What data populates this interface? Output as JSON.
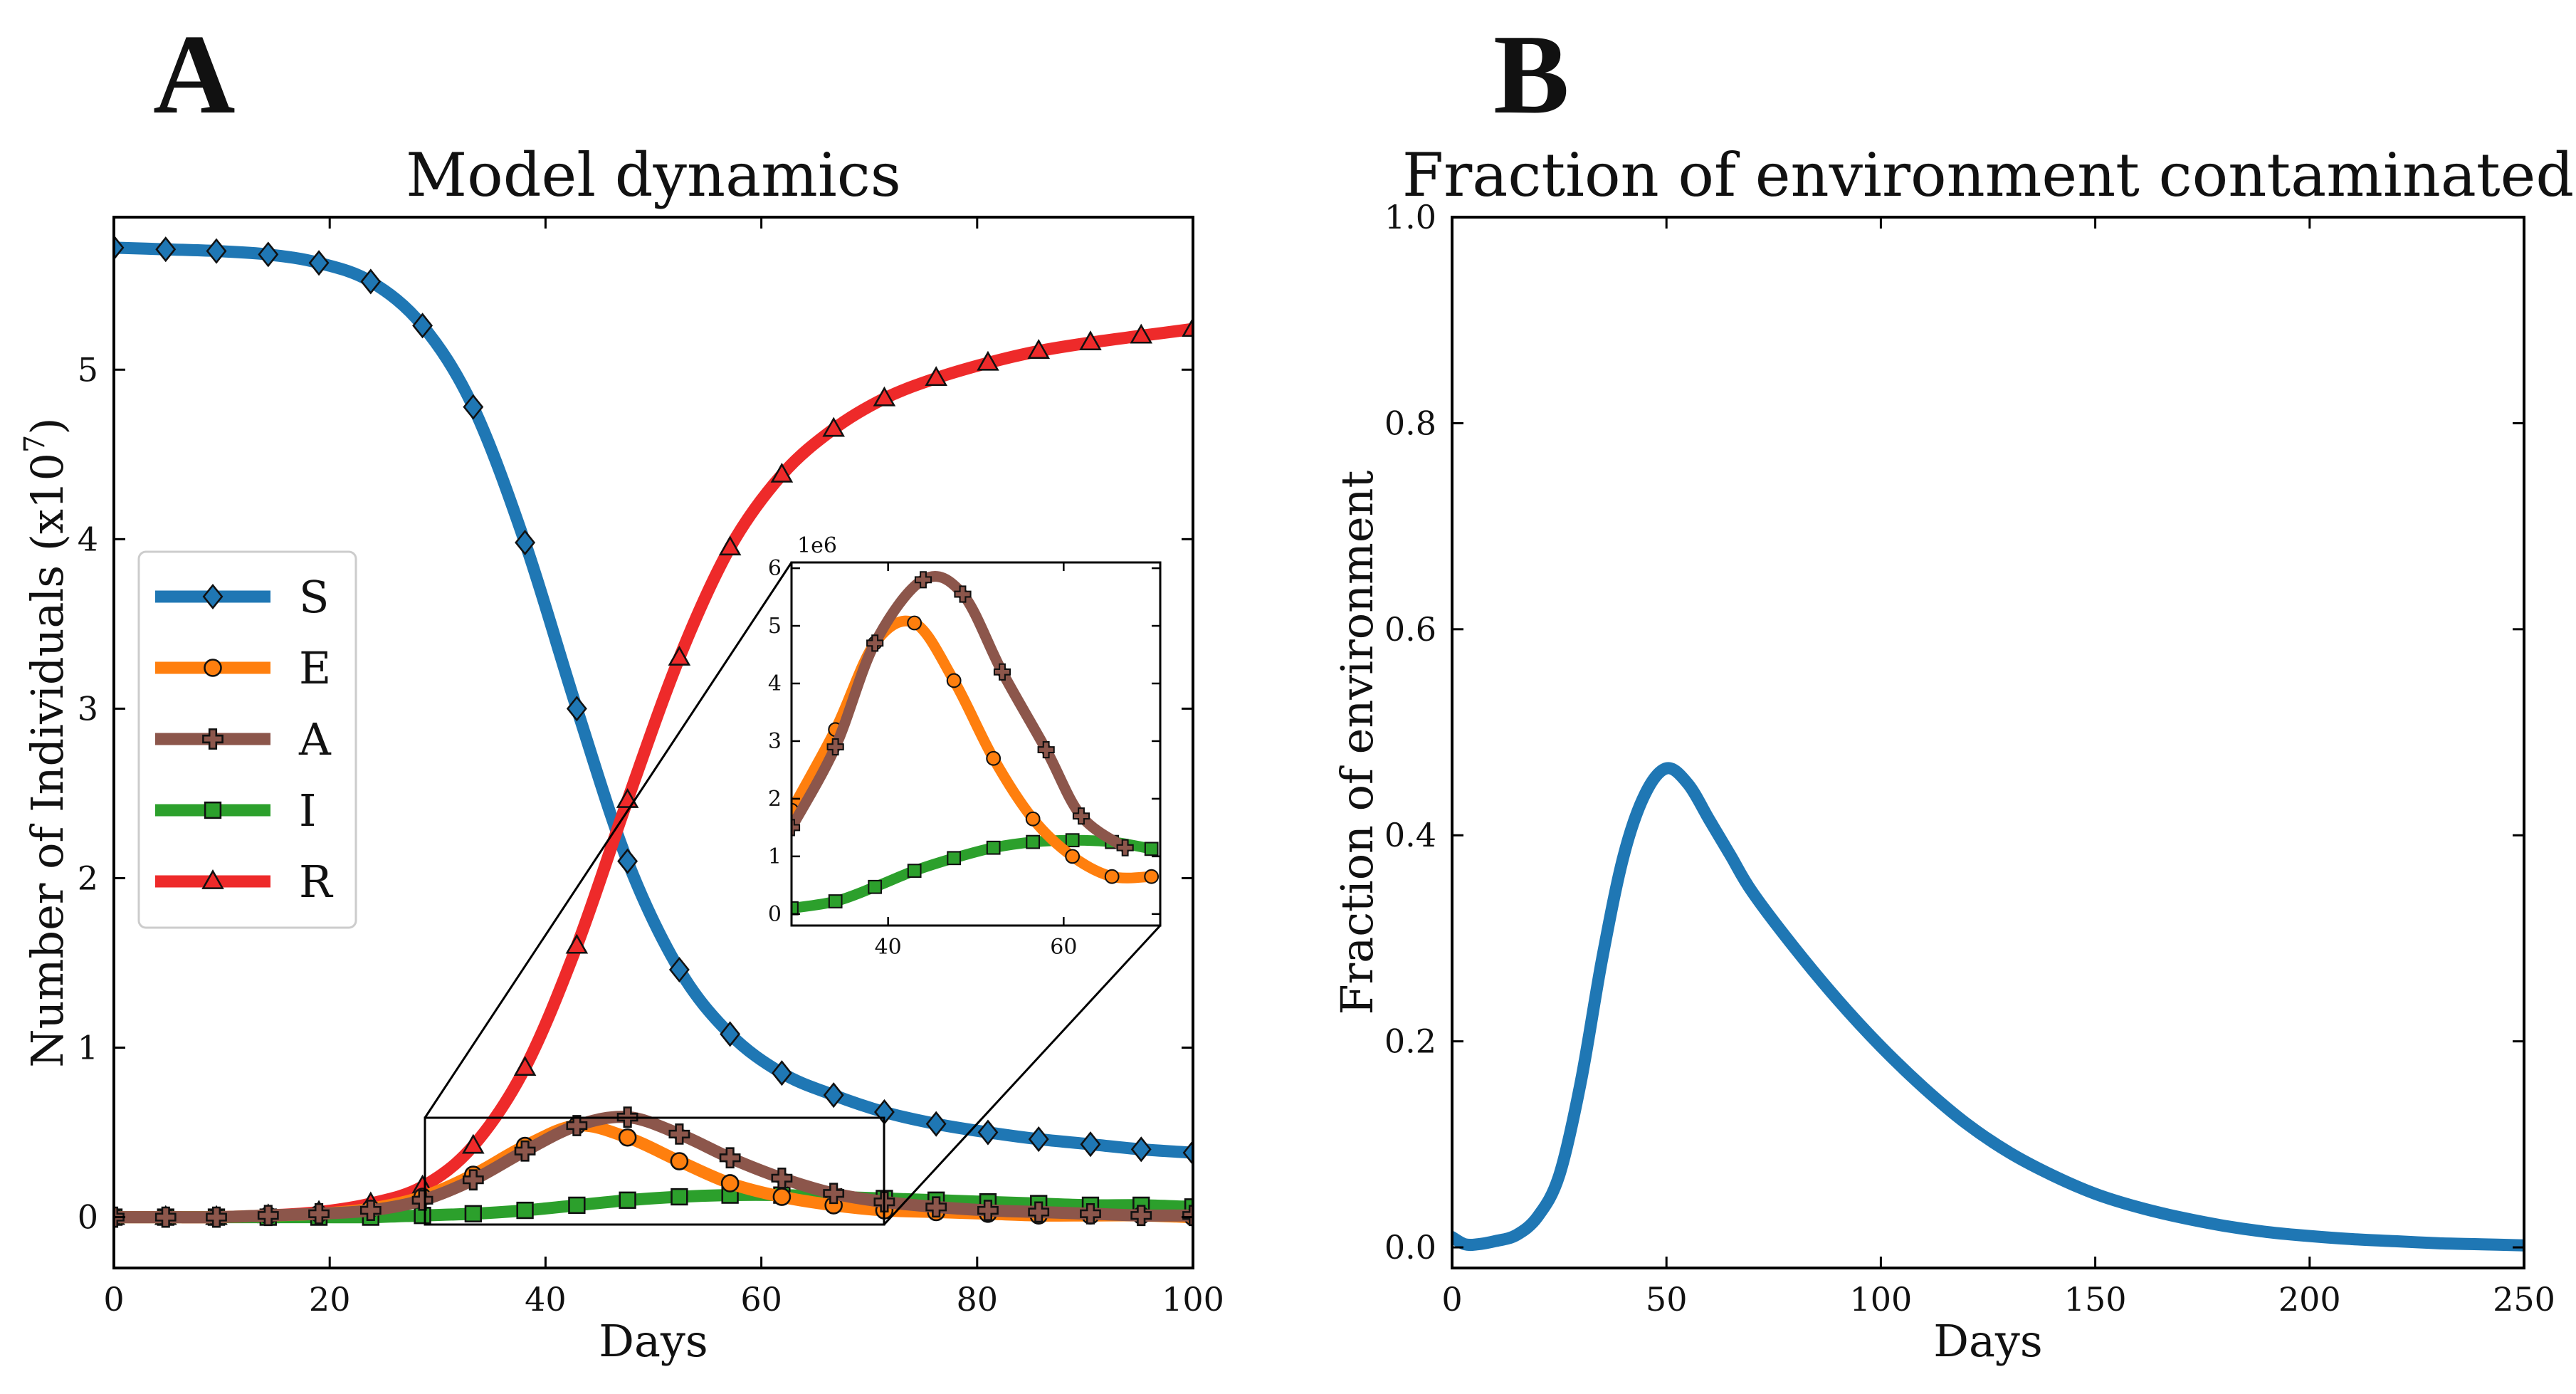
{
  "chart_data": [
    {
      "panel": "A",
      "type": "line",
      "title": "Model dynamics",
      "xlabel": "Days",
      "ylabel": "Number of Individuals (x10",
      "ylabel_exponent": "7",
      "ylabel_close": ")",
      "xlim": [
        0,
        100
      ],
      "ylim": [
        -0.3,
        5.9
      ],
      "xticks": [
        0,
        20,
        40,
        60,
        80,
        100
      ],
      "yticks": [
        0,
        1,
        2,
        3,
        4,
        5
      ],
      "legend_position": "center-left",
      "series": [
        {
          "name": "S",
          "color": "#1f77b4",
          "marker": "diamond",
          "x": [
            0,
            4.8,
            9.5,
            14.3,
            19,
            23.8,
            28.6,
            33.3,
            38.1,
            42.9,
            47.6,
            52.4,
            57.1,
            61.9,
            66.7,
            71.4,
            76.2,
            81,
            85.7,
            90.5,
            95.2,
            100
          ],
          "values": [
            5.72,
            5.71,
            5.7,
            5.68,
            5.63,
            5.52,
            5.26,
            4.78,
            3.98,
            3.0,
            2.1,
            1.46,
            1.08,
            0.85,
            0.72,
            0.62,
            0.55,
            0.5,
            0.46,
            0.43,
            0.4,
            0.38
          ]
        },
        {
          "name": "E",
          "color": "#ff7f0e",
          "marker": "circle",
          "x": [
            0,
            4.8,
            9.5,
            14.3,
            19,
            23.8,
            28.6,
            33.3,
            38.1,
            42.9,
            47.6,
            52.4,
            57.1,
            61.9,
            66.7,
            71.4,
            76.2,
            81,
            85.7,
            90.5,
            95.2,
            100
          ],
          "values": [
            0.0,
            0.0,
            0.0,
            0.01,
            0.02,
            0.05,
            0.12,
            0.25,
            0.42,
            0.54,
            0.47,
            0.33,
            0.2,
            0.12,
            0.07,
            0.04,
            0.03,
            0.02,
            0.01,
            0.01,
            0.01,
            0.0
          ]
        },
        {
          "name": "A",
          "color": "#8c564b",
          "marker": "plus",
          "x": [
            0,
            4.8,
            9.5,
            14.3,
            19,
            23.8,
            28.6,
            33.3,
            38.1,
            42.9,
            47.6,
            52.4,
            57.1,
            61.9,
            66.7,
            71.4,
            76.2,
            81,
            85.7,
            90.5,
            95.2,
            100
          ],
          "values": [
            0.0,
            0.0,
            0.0,
            0.01,
            0.02,
            0.04,
            0.1,
            0.22,
            0.39,
            0.54,
            0.59,
            0.49,
            0.35,
            0.23,
            0.14,
            0.09,
            0.06,
            0.04,
            0.03,
            0.02,
            0.01,
            0.01
          ]
        },
        {
          "name": "I",
          "color": "#2ca02c",
          "marker": "square",
          "x": [
            0,
            4.8,
            9.5,
            14.3,
            19,
            23.8,
            28.6,
            33.3,
            38.1,
            42.9,
            47.6,
            52.4,
            57.1,
            61.9,
            66.7,
            71.4,
            76.2,
            81,
            85.7,
            90.5,
            95.2,
            100
          ],
          "values": [
            0.0,
            0.0,
            0.0,
            0.0,
            0.0,
            0.0,
            0.01,
            0.02,
            0.04,
            0.07,
            0.1,
            0.12,
            0.13,
            0.13,
            0.12,
            0.11,
            0.1,
            0.09,
            0.08,
            0.07,
            0.07,
            0.06
          ]
        },
        {
          "name": "R",
          "color": "#ee2a2a",
          "marker": "triangle",
          "x": [
            0,
            4.8,
            9.5,
            14.3,
            19,
            23.8,
            28.6,
            33.3,
            38.1,
            42.9,
            47.6,
            52.4,
            57.1,
            61.9,
            66.7,
            71.4,
            76.2,
            81,
            85.7,
            90.5,
            95.2,
            100
          ],
          "values": [
            0.0,
            0.0,
            0.0,
            0.01,
            0.03,
            0.08,
            0.18,
            0.42,
            0.88,
            1.6,
            2.46,
            3.3,
            3.95,
            4.38,
            4.65,
            4.83,
            4.95,
            5.04,
            5.11,
            5.16,
            5.2,
            5.24
          ]
        }
      ],
      "inset": {
        "xlim": [
          29,
          71
        ],
        "ylim": [
          -0.2,
          6.1
        ],
        "xticks": [
          40,
          60
        ],
        "yticks": [
          0,
          1,
          2,
          3,
          4,
          5,
          6
        ],
        "offset_text": "1e6",
        "series": [
          {
            "name": "E",
            "color": "#ff7f0e",
            "marker": "circle",
            "x": [
              29,
              34,
              38.5,
              43,
              47.5,
              52,
              56.5,
              61,
              65.5,
              70
            ],
            "values": [
              1.8,
              3.2,
              4.7,
              5.05,
              4.05,
              2.7,
              1.65,
              1.0,
              0.65,
              0.65
            ]
          },
          {
            "name": "A",
            "color": "#8c564b",
            "marker": "plus",
            "x": [
              29,
              34,
              38.5,
              44,
              48.5,
              53,
              58,
              62,
              67
            ],
            "values": [
              1.5,
              2.9,
              4.7,
              5.8,
              5.55,
              4.2,
              2.85,
              1.7,
              1.15
            ]
          },
          {
            "name": "I",
            "color": "#2ca02c",
            "marker": "square",
            "x": [
              29,
              34,
              38.5,
              43,
              47.5,
              52,
              56.5,
              61,
              65.5,
              70
            ],
            "values": [
              0.1,
              0.22,
              0.47,
              0.75,
              0.97,
              1.15,
              1.25,
              1.28,
              1.25,
              1.13
            ]
          }
        ]
      }
    },
    {
      "panel": "B",
      "type": "line",
      "title": "Fraction of environment contaminated",
      "xlabel": "Days",
      "ylabel": "Fraction of environment",
      "xlim": [
        0,
        250
      ],
      "ylim": [
        -0.02,
        1.0
      ],
      "xticks": [
        0,
        50,
        100,
        150,
        200,
        250
      ],
      "yticks": [
        0.0,
        0.2,
        0.4,
        0.6,
        0.8,
        1.0
      ],
      "ytick_labels": [
        "0.0",
        "0.2",
        "0.4",
        "0.6",
        "0.8",
        "1.0"
      ],
      "series": [
        {
          "name": "contaminated",
          "color": "#1f77b4",
          "x": [
            0,
            3,
            6,
            10,
            15,
            20,
            25,
            30,
            35,
            40,
            45,
            50,
            55,
            60,
            65,
            70,
            80,
            90,
            100,
            110,
            120,
            130,
            140,
            150,
            160,
            170,
            180,
            190,
            200,
            210,
            220,
            230,
            240,
            250
          ],
          "values": [
            0.01,
            0.003,
            0.003,
            0.006,
            0.012,
            0.03,
            0.07,
            0.16,
            0.28,
            0.38,
            0.44,
            0.465,
            0.45,
            0.415,
            0.38,
            0.345,
            0.29,
            0.24,
            0.195,
            0.155,
            0.12,
            0.092,
            0.07,
            0.052,
            0.039,
            0.029,
            0.021,
            0.015,
            0.011,
            0.008,
            0.006,
            0.004,
            0.003,
            0.002
          ]
        }
      ]
    }
  ],
  "panel_labels": [
    "A",
    "B"
  ]
}
